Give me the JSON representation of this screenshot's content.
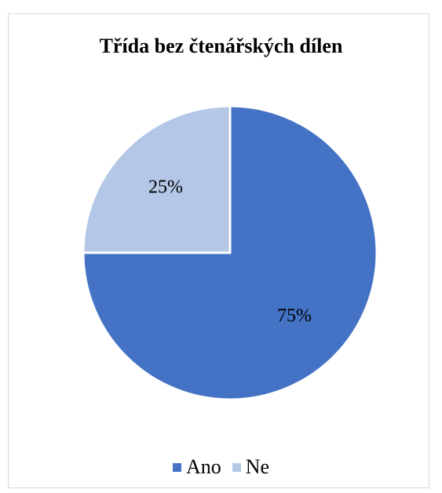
{
  "chart_data": {
    "type": "pie",
    "title": "Třída bez čtenářských dílen",
    "slices": [
      {
        "label": "Ano",
        "value": 75,
        "data_label": "75%",
        "color": "#4472C4"
      },
      {
        "label": "Ne",
        "value": 25,
        "data_label": "25%",
        "color": "#B4C7E7"
      }
    ],
    "start_angle_deg": 0,
    "direction": "clockwise",
    "legend_position": "bottom"
  }
}
